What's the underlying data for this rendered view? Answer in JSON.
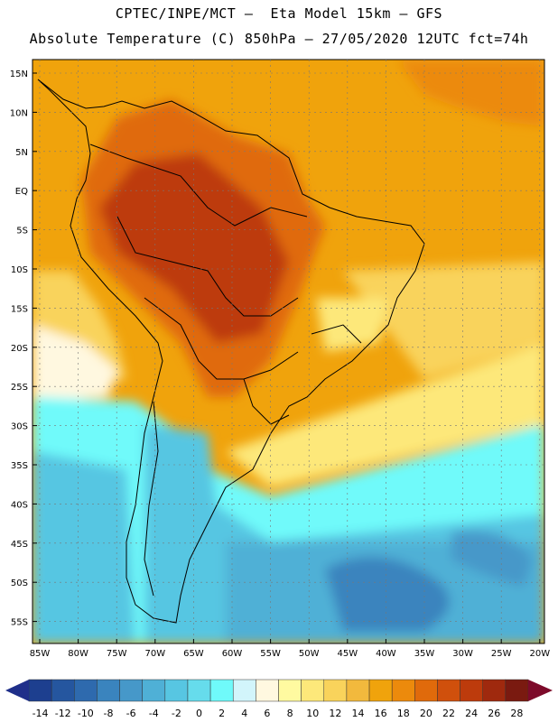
{
  "header": {
    "line1": "CPTEC/INPE/MCT —  Eta Model 15km — GFS",
    "line2": "Absolute Temperature (C) 850hPa — 27/05/2020 12UTC fct=74h"
  },
  "lat_labels": [
    "15N",
    "10N",
    "5N",
    "EQ",
    "5S",
    "10S",
    "15S",
    "20S",
    "25S",
    "30S",
    "35S",
    "40S",
    "45S",
    "50S",
    "55S"
  ],
  "lon_labels": [
    "85W",
    "80W",
    "75W",
    "70W",
    "65W",
    "60W",
    "55W",
    "50W",
    "45W",
    "40W",
    "35W",
    "30W",
    "25W",
    "20W"
  ],
  "colorbar": {
    "colors": [
      "#1d3f8f",
      "#25569f",
      "#2e6aae",
      "#3a84be",
      "#4698c9",
      "#4fb0d6",
      "#57c6e2",
      "#66dcec",
      "#6ffafa",
      "#d2f5fb",
      "#fff8e0",
      "#fffaa0",
      "#fde87a",
      "#f9d35b",
      "#f2b93d",
      "#f0a30c",
      "#ec8a0c",
      "#e06a0b",
      "#d0500c",
      "#bd3b0c",
      "#9f290e",
      "#7a1a10"
    ],
    "under_color": "#1f2f8a",
    "over_color": "#7d0a2a",
    "ticks": [
      "-14",
      "-12",
      "-10",
      "-8",
      "-6",
      "-4",
      "-2",
      "0",
      "2",
      "4",
      "6",
      "8",
      "10",
      "12",
      "14",
      "16",
      "18",
      "20",
      "22",
      "24",
      "26",
      "28"
    ]
  },
  "field_colors": {
    "ocean_north": "#f0a30c",
    "ocean_north_warm": "#ec8a0c",
    "pale_warm": "#fde87a",
    "pale": "#fff8e0",
    "cyan": "#6ffafa",
    "light_blue": "#57c6e2",
    "mid_blue": "#4698c9",
    "dark_blue": "#3a84be",
    "land_warm": "#e06a0b",
    "land_hot": "#bd3b0c"
  }
}
